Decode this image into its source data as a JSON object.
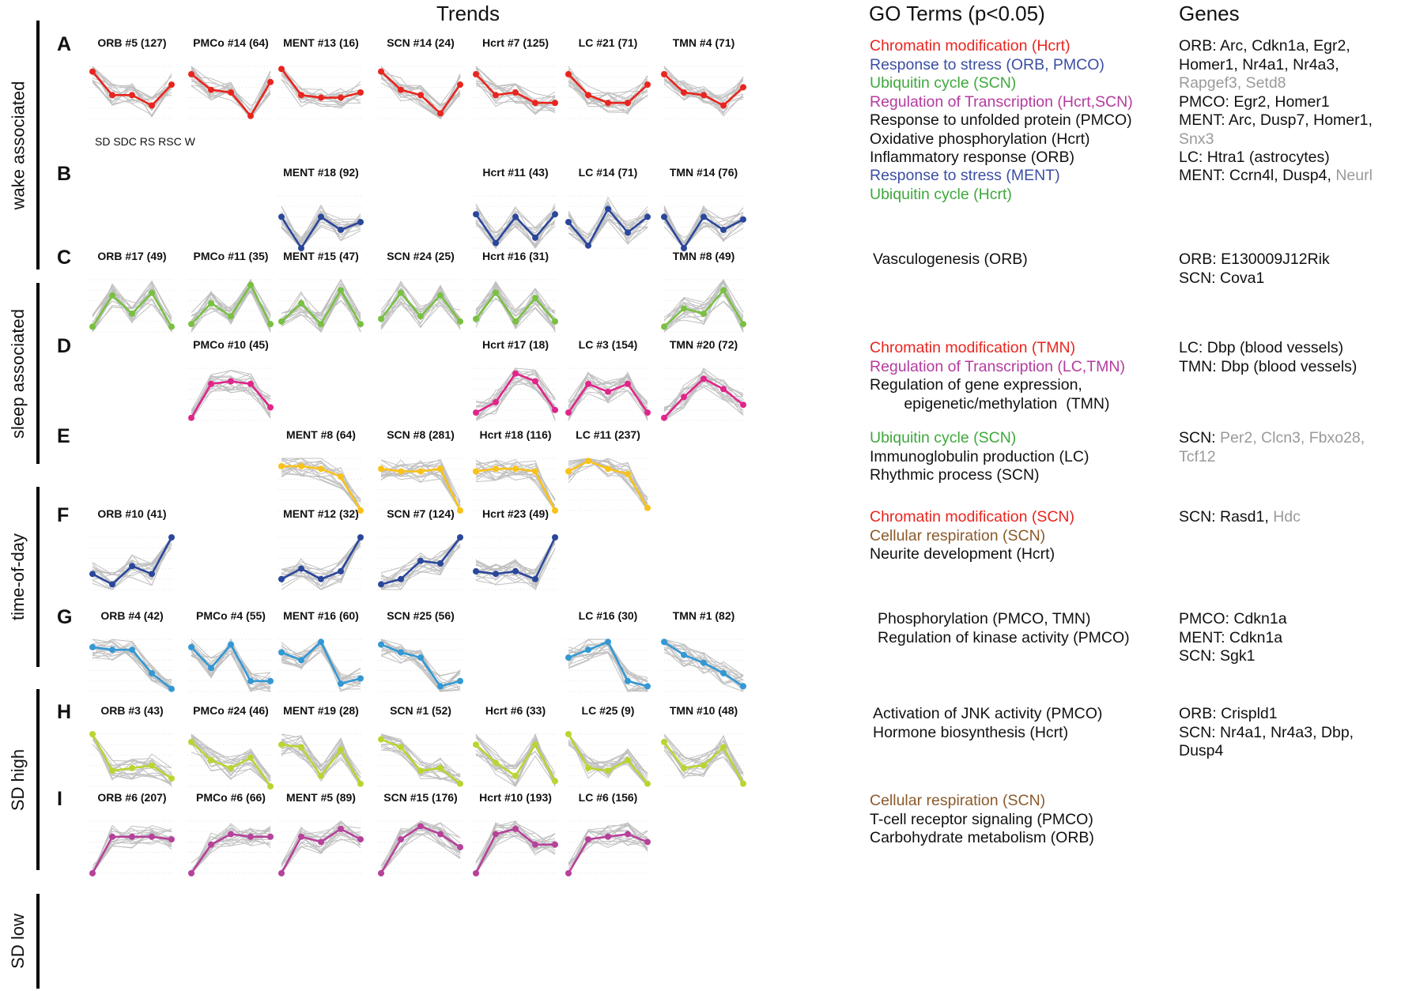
{
  "headers": {
    "trends": "Trends",
    "go": "GO Terms (p<0.05)",
    "genes": "Genes"
  },
  "colors": {
    "red": "#e8251f",
    "blue": "#2b479b",
    "green": "#79c043",
    "magenta": "#e0268a",
    "yellow": "#f8c21a",
    "navy": "#2b479b",
    "cyan": "#3398d4",
    "lime": "#b9d532",
    "purple": "#b6429a",
    "grey_trace": "#c0c0c0",
    "grey_text": "#9a9a9a",
    "go_red": "#e8251f",
    "go_blue": "#3b4ea3",
    "go_green": "#3fa83c",
    "go_magenta": "#b43ba0",
    "go_brown": "#8b5a2b"
  },
  "x_labels": "SD SDC RS RSC W",
  "groups": [
    "wake associated",
    "sleep associated",
    "time-of-day",
    "SD high",
    "SD low"
  ],
  "rows": [
    {
      "letter": "A",
      "color": "red",
      "trends": [
        {
          "label": "ORB #5 (127)",
          "col": 0,
          "values": [
            0.9,
            0.45,
            0.45,
            0.25,
            0.65
          ]
        },
        {
          "label": "PMCo #14 (64)",
          "col": 1,
          "values": [
            0.85,
            0.55,
            0.5,
            0.05,
            0.7
          ]
        },
        {
          "label": "MENT #13 (16)",
          "col": 2,
          "values": [
            0.95,
            0.45,
            0.4,
            0.4,
            0.5
          ]
        },
        {
          "label": "SCN #14 (24)",
          "col": 3,
          "values": [
            0.9,
            0.55,
            0.45,
            0.1,
            0.65
          ]
        },
        {
          "label": "Hcrt #7 (125)",
          "col": 4,
          "values": [
            0.85,
            0.45,
            0.5,
            0.3,
            0.3
          ]
        },
        {
          "label": "LC #21 (71)",
          "col": 5,
          "values": [
            0.85,
            0.45,
            0.3,
            0.3,
            0.65
          ]
        },
        {
          "label": "TMN #4 (71)",
          "col": 6,
          "values": [
            0.85,
            0.5,
            0.45,
            0.25,
            0.6
          ]
        }
      ],
      "go": [
        [
          "Chromatin modification (Hcrt)",
          "go_red"
        ],
        [
          "Response to stress (ORB, PMCO)",
          "go_blue"
        ],
        [
          "Ubiquitin cycle (SCN)",
          "go_green"
        ],
        [
          "Regulation of Transcription (Hcrt,SCN)",
          "go_magenta"
        ],
        [
          "Response to unfolded protein (PMCO)",
          "black"
        ],
        [
          "Oxidative phosphorylation (Hcrt)",
          "black"
        ],
        [
          "Inflammatory response (ORB)",
          "black"
        ]
      ],
      "genes": [
        [
          [
            "ORB: Arc, Cdkn1a, Egr2,",
            "black"
          ]
        ],
        [
          [
            "Homer1, Nr4a1, Nr4a3,",
            "black"
          ]
        ],
        [
          [
            "Rapgef3, Setd8",
            "grey"
          ]
        ],
        [
          [
            "PMCO: Egr2, Homer1",
            "black"
          ]
        ],
        [
          [
            "MENT: Arc, Dusp7, Homer1,",
            "black"
          ]
        ],
        [
          [
            "Snx3",
            "grey"
          ]
        ],
        [
          [
            "LC: Htra1 (astrocytes)",
            "black"
          ]
        ]
      ]
    },
    {
      "letter": "B",
      "color": "blue",
      "trends": [
        {
          "label": "MENT #18 (92)",
          "col": 2,
          "values": [
            0.6,
            0.0,
            0.6,
            0.35,
            0.5
          ]
        },
        {
          "label": "Hcrt #11 (43)",
          "col": 4,
          "values": [
            0.65,
            0.1,
            0.6,
            0.2,
            0.65
          ]
        },
        {
          "label": "LC #14 (71)",
          "col": 5,
          "values": [
            0.5,
            0.05,
            0.75,
            0.3,
            0.6
          ]
        },
        {
          "label": "TMN #14 (76)",
          "col": 6,
          "values": [
            0.6,
            0.0,
            0.6,
            0.35,
            0.55
          ]
        }
      ],
      "go": [
        [
          "Response to stress (MENT)",
          "go_blue"
        ],
        [
          "Ubiquitin cycle (Hcrt)",
          "go_green"
        ]
      ],
      "genes": [
        [
          [
            "MENT: Ccrn4l, Dusp4, ",
            "black"
          ],
          [
            "Neurl",
            "grey"
          ]
        ]
      ]
    },
    {
      "letter": "C",
      "color": "green",
      "trends": [
        {
          "label": "ORB #17 (49)",
          "col": 0,
          "values": [
            0.1,
            0.7,
            0.35,
            0.75,
            0.1
          ]
        },
        {
          "label": "PMCo #11 (35)",
          "col": 1,
          "values": [
            0.15,
            0.55,
            0.3,
            0.9,
            0.15
          ]
        },
        {
          "label": "MENT #15 (47)",
          "col": 2,
          "values": [
            0.2,
            0.55,
            0.15,
            0.8,
            0.15
          ]
        },
        {
          "label": "SCN #24 (25)",
          "col": 3,
          "values": [
            0.25,
            0.75,
            0.3,
            0.7,
            0.2
          ]
        },
        {
          "label": "Hcrt #16 (31)",
          "col": 4,
          "values": [
            0.25,
            0.75,
            0.2,
            0.65,
            0.2
          ]
        },
        {
          "label": "TMN #8 (49)",
          "col": 6,
          "values": [
            0.1,
            0.45,
            0.35,
            0.8,
            0.15
          ]
        }
      ],
      "go": [
        [
          "Vasculogenesis (ORB)",
          "black"
        ]
      ],
      "genes": [
        [
          [
            "ORB: E130009J12Rik",
            "black"
          ]
        ],
        [
          [
            "SCN: Cova1",
            "black"
          ]
        ]
      ]
    },
    {
      "letter": "D",
      "color": "magenta",
      "trends": [
        {
          "label": "PMCo #10 (45)",
          "col": 1,
          "values": [
            0.05,
            0.7,
            0.75,
            0.7,
            0.25
          ]
        },
        {
          "label": "Hcrt #17 (18)",
          "col": 4,
          "values": [
            0.15,
            0.35,
            0.9,
            0.75,
            0.2
          ]
        },
        {
          "label": "LC #3 (154)",
          "col": 5,
          "values": [
            0.15,
            0.7,
            0.55,
            0.7,
            0.15
          ]
        },
        {
          "label": "TMN #20 (72)",
          "col": 6,
          "values": [
            0.05,
            0.45,
            0.8,
            0.6,
            0.3
          ]
        }
      ],
      "go": [
        [
          "Chromatin modification (TMN)",
          "go_red"
        ],
        [
          "Regulation of Transcription (LC,TMN)",
          "go_magenta"
        ],
        [
          "Regulation of gene expression,",
          "black"
        ],
        [
          "        epigenetic/methylation  (TMN)",
          "black"
        ]
      ],
      "genes": [
        [
          [
            "LC: Dbp (blood vessels)",
            "black"
          ]
        ],
        [
          [
            "TMN: Dbp (blood vessels)",
            "black"
          ]
        ]
      ]
    },
    {
      "letter": "E",
      "color": "yellow",
      "trends": [
        {
          "label": "MENT #8 (64)",
          "col": 2,
          "values": [
            0.85,
            0.85,
            0.8,
            0.65,
            0.0
          ]
        },
        {
          "label": "SCN #8 (281)",
          "col": 3,
          "values": [
            0.8,
            0.75,
            0.75,
            0.8,
            0.0
          ]
        },
        {
          "label": "Hcrt #18 (116)",
          "col": 4,
          "values": [
            0.75,
            0.8,
            0.8,
            0.75,
            0.0
          ]
        },
        {
          "label": "LC #11 (237)",
          "col": 5,
          "values": [
            0.75,
            0.95,
            0.8,
            0.7,
            0.05
          ]
        }
      ],
      "go": [
        [
          "Ubiquitin cycle (SCN)",
          "go_green"
        ],
        [
          "Immunoglobulin production (LC)",
          "black"
        ],
        [
          "Rhythmic process (SCN)",
          "black"
        ]
      ],
      "genes": [
        [
          [
            "SCN: ",
            "black"
          ],
          [
            "Per2, Clcn3, Fbxo28,",
            "grey"
          ]
        ],
        [
          [
            "Tcf12",
            "grey"
          ]
        ]
      ]
    },
    {
      "letter": "F",
      "color": "navy",
      "trends": [
        {
          "label": "ORB #10 (41)",
          "col": 0,
          "values": [
            0.3,
            0.1,
            0.45,
            0.3,
            1.0
          ]
        },
        {
          "label": "MENT #12 (32)",
          "col": 2,
          "values": [
            0.2,
            0.4,
            0.2,
            0.35,
            1.0
          ]
        },
        {
          "label": "SCN #7 (124)",
          "col": 3,
          "values": [
            0.1,
            0.2,
            0.55,
            0.5,
            1.0
          ]
        },
        {
          "label": "Hcrt #23 (49)",
          "col": 4,
          "values": [
            0.35,
            0.3,
            0.35,
            0.2,
            1.0
          ]
        }
      ],
      "go": [
        [
          "Chromatin modification (SCN)",
          "go_red"
        ],
        [
          "Cellular respiration (SCN)",
          "go_brown"
        ],
        [
          "Neurite development (Hcrt)",
          "black"
        ]
      ],
      "genes": [
        [
          [
            "SCN: Rasd1, ",
            "black"
          ],
          [
            "Hdc",
            "grey"
          ]
        ]
      ]
    },
    {
      "letter": "G",
      "color": "cyan",
      "trends": [
        {
          "label": "ORB #4 (42)",
          "col": 0,
          "values": [
            0.85,
            0.8,
            0.8,
            0.35,
            0.05
          ]
        },
        {
          "label": "PMCo #4 (55)",
          "col": 1,
          "values": [
            0.85,
            0.45,
            0.9,
            0.2,
            0.2
          ]
        },
        {
          "label": "MENT #16 (60)",
          "col": 2,
          "values": [
            0.75,
            0.6,
            0.95,
            0.15,
            0.25
          ]
        },
        {
          "label": "SCN #25 (56)",
          "col": 3,
          "values": [
            0.9,
            0.75,
            0.65,
            0.1,
            0.2
          ]
        },
        {
          "label": "LC #16 (30)",
          "col": 5,
          "values": [
            0.65,
            0.8,
            0.95,
            0.2,
            0.1
          ]
        },
        {
          "label": "TMN #1 (82)",
          "col": 6,
          "values": [
            0.95,
            0.7,
            0.55,
            0.35,
            0.1
          ]
        }
      ],
      "go": [
        [
          "Phosphorylation (PMCO, TMN)",
          "black"
        ],
        [
          "Regulation of kinase activity (PMCO)",
          "black"
        ]
      ],
      "genes": [
        [
          [
            "PMCO: Cdkn1a",
            "black"
          ]
        ],
        [
          [
            "MENT: Cdkn1a",
            "black"
          ]
        ],
        [
          [
            "SCN: Sgk1",
            "black"
          ]
        ]
      ]
    },
    {
      "letter": "H",
      "color": "lime",
      "trends": [
        {
          "label": "ORB #3 (43)",
          "col": 0,
          "values": [
            1.0,
            0.3,
            0.35,
            0.4,
            0.15
          ]
        },
        {
          "label": "PMCo #24 (46)",
          "col": 1,
          "values": [
            0.85,
            0.5,
            0.35,
            0.55,
            0.0
          ]
        },
        {
          "label": "MENT #19 (28)",
          "col": 2,
          "values": [
            0.8,
            0.75,
            0.2,
            0.7,
            0.05
          ]
        },
        {
          "label": "SCN #1 (52)",
          "col": 3,
          "values": [
            0.9,
            0.75,
            0.3,
            0.35,
            0.05
          ]
        },
        {
          "label": "Hcrt #6 (33)",
          "col": 4,
          "values": [
            0.8,
            0.45,
            0.2,
            0.8,
            0.1
          ]
        },
        {
          "label": "LC #25 (9)",
          "col": 5,
          "values": [
            1.0,
            0.35,
            0.3,
            0.5,
            0.05
          ]
        },
        {
          "label": "TMN #10 (48)",
          "col": 6,
          "values": [
            0.85,
            0.35,
            0.4,
            0.75,
            0.05
          ]
        }
      ],
      "go": [
        [
          "Activation of JNK activity (PMCO)",
          "black"
        ],
        [
          "Hormone biosynthesis (Hcrt)",
          "black"
        ]
      ],
      "genes": [
        [
          [
            "ORB: Crispld1",
            "black"
          ]
        ],
        [
          [
            "SCN: Nr4a1, Nr4a3, Dbp,",
            "black"
          ]
        ],
        [
          [
            "Dusp4",
            "black"
          ]
        ]
      ]
    },
    {
      "letter": "I",
      "color": "purple",
      "trends": [
        {
          "label": "ORB #6 (207)",
          "col": 0,
          "values": [
            0.0,
            0.7,
            0.7,
            0.7,
            0.65
          ]
        },
        {
          "label": "PMCo #6 (66)",
          "col": 1,
          "values": [
            0.0,
            0.55,
            0.75,
            0.7,
            0.7
          ]
        },
        {
          "label": "MENT #5 (89)",
          "col": 2,
          "values": [
            0.0,
            0.7,
            0.6,
            0.85,
            0.65
          ]
        },
        {
          "label": "SCN #15 (176)",
          "col": 3,
          "values": [
            0.0,
            0.65,
            0.9,
            0.75,
            0.5
          ]
        },
        {
          "label": "Hcrt #10 (193)",
          "col": 4,
          "values": [
            0.0,
            0.75,
            0.85,
            0.55,
            0.55
          ]
        },
        {
          "label": "LC #6 (156)",
          "col": 5,
          "values": [
            0.0,
            0.65,
            0.7,
            0.75,
            0.6
          ]
        }
      ],
      "go": [
        [
          "Cellular respiration (SCN)",
          "go_brown"
        ],
        [
          "T-cell receptor signaling (PMCO)",
          "black"
        ],
        [
          "Carbohydrate metabolism (ORB)",
          "black"
        ]
      ],
      "genes": []
    }
  ]
}
